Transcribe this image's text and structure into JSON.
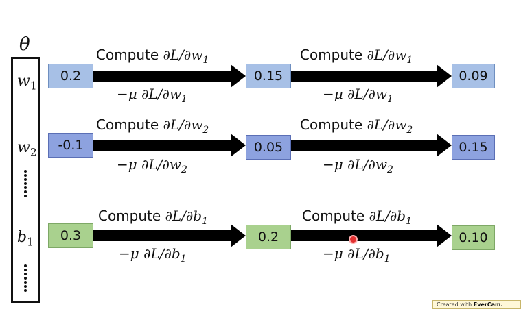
{
  "theta": "θ",
  "params": [
    {
      "sym": "w",
      "sub": "1"
    },
    {
      "sym": "w",
      "sub": "2"
    },
    {
      "sym": "b",
      "sub": "1"
    }
  ],
  "rows": [
    {
      "values": [
        "0.2",
        "0.15",
        "0.09"
      ],
      "compute_word": "Compute",
      "compute_math": "∂L/∂",
      "var": "w",
      "sub": "1",
      "update_math": "−μ ∂L/∂"
    },
    {
      "values": [
        "-0.1",
        "0.05",
        "0.15"
      ],
      "compute_word": "Compute",
      "compute_math": "∂L/∂",
      "var": "w",
      "sub": "2",
      "update_math": "−μ ∂L/∂"
    },
    {
      "values": [
        "0.3",
        "0.2",
        "0.10"
      ],
      "compute_word": "Compute",
      "compute_math": "∂L/∂",
      "var": "b",
      "sub": "1",
      "update_math": "−μ ∂L/∂"
    }
  ],
  "watermark": {
    "prefix": "Created with",
    "brand": "EverCam."
  }
}
